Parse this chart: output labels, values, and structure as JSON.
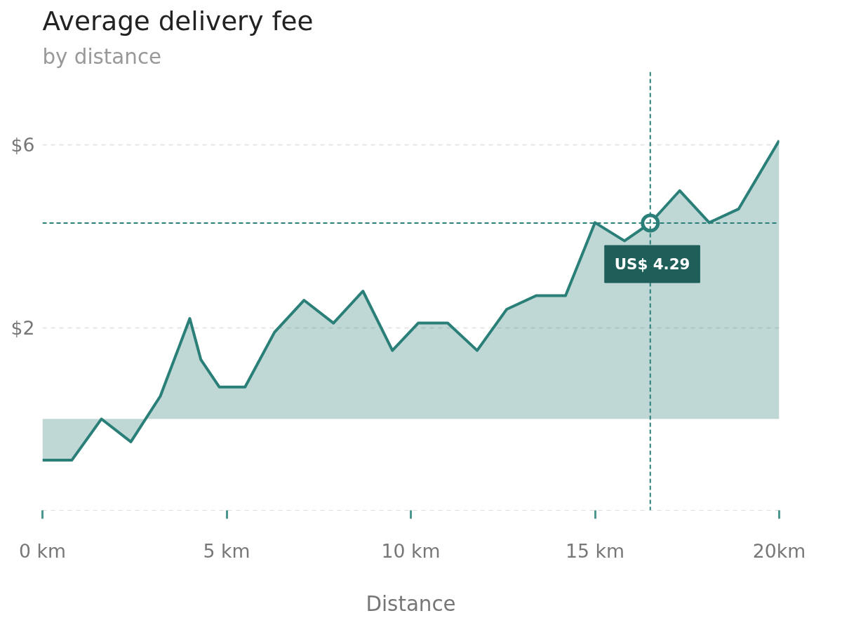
{
  "chart_data": {
    "type": "area",
    "title": "Average delivery fee",
    "subtitle": "by distance",
    "xlabel": "Distance",
    "series": [
      {
        "color": "#2a7f78",
        "x": [
          0,
          0.8,
          1.6,
          2.4,
          3.2,
          4,
          4.3,
          4.8,
          5.5,
          6.3,
          7.1,
          7.9,
          8.7,
          9.5,
          10.2,
          11,
          11.8,
          12.6,
          13.4,
          14.2,
          15,
          15.8,
          16.5,
          17.3,
          18.1,
          18.9,
          20
        ],
        "values": [
          -0.9,
          -0.9,
          0,
          -0.5,
          0.5,
          2.2,
          1.3,
          0.7,
          0.7,
          1.9,
          2.6,
          2.1,
          2.8,
          1.5,
          2.1,
          2.1,
          1.5,
          2.4,
          2.7,
          2.7,
          4.3,
          3.9,
          4.29,
          5,
          4.3,
          4.6,
          6.1
        ]
      }
    ],
    "xlim": [
      0,
      20
    ],
    "xticks": [
      {
        "value": 0,
        "label": "0 km"
      },
      {
        "value": 5,
        "label": "5 km"
      },
      {
        "value": 10,
        "label": "10 km"
      },
      {
        "value": 15,
        "label": "15 km"
      },
      {
        "value": 20,
        "label": "20km"
      }
    ],
    "ylim": [
      -2,
      7.6
    ],
    "yticks": [
      {
        "value": 6,
        "label": "$6"
      },
      {
        "value": 2,
        "label": "$2"
      }
    ],
    "grid": "y",
    "line_style": "solid",
    "ref_lines": [
      {
        "axis": "y",
        "value": 4.29,
        "color": "#2a7f78",
        "line_style": "dashed"
      },
      {
        "axis": "x",
        "value": 16.5,
        "color": "#2a7f78",
        "line_style": "dashed"
      }
    ],
    "annotations": [
      {
        "text": "US$ 4.29",
        "x": 16.5,
        "y": 4.29
      }
    ]
  }
}
